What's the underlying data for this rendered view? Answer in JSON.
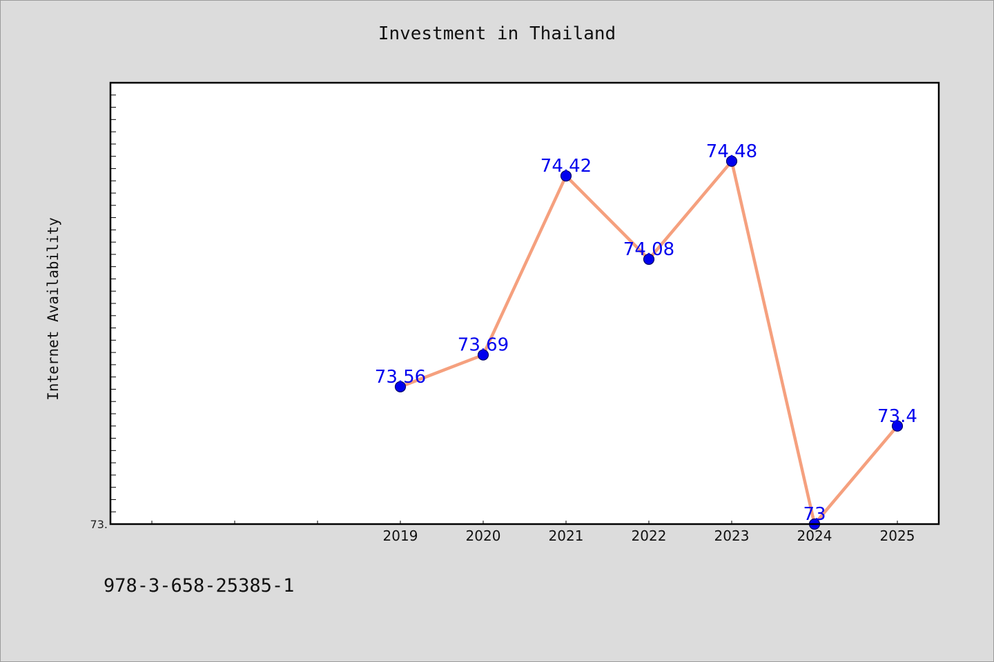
{
  "chart_data": {
    "type": "line",
    "title": "Investment in Thailand",
    "xlabel": "",
    "ylabel": "Internet Availability",
    "x": [
      "2019",
      "2020",
      "2021",
      "2022",
      "2023",
      "2024",
      "2025"
    ],
    "series": [
      {
        "values": [
          73.56,
          73.69,
          74.42,
          74.08,
          74.48,
          73.0,
          73.4
        ],
        "data_labels": [
          "73.56",
          "73.69",
          "74.42",
          "74.08",
          "74.48",
          "73",
          "73.4"
        ]
      }
    ],
    "y_tick_labels": [
      {
        "value": 73.0,
        "label": "73."
      }
    ],
    "ylim": [
      73.0,
      74.8
    ],
    "xlim": [
      2015.5,
      2025.5
    ],
    "grid": false,
    "colors": {
      "line": "#f5a07e",
      "marker": "#0000ee",
      "marker_edge": "#000066",
      "data_label": "#0000ee",
      "plot_bg": "#ffffff",
      "figure_bg": "#dcdcdc"
    }
  },
  "footnote": "978-3-658-25385-1"
}
